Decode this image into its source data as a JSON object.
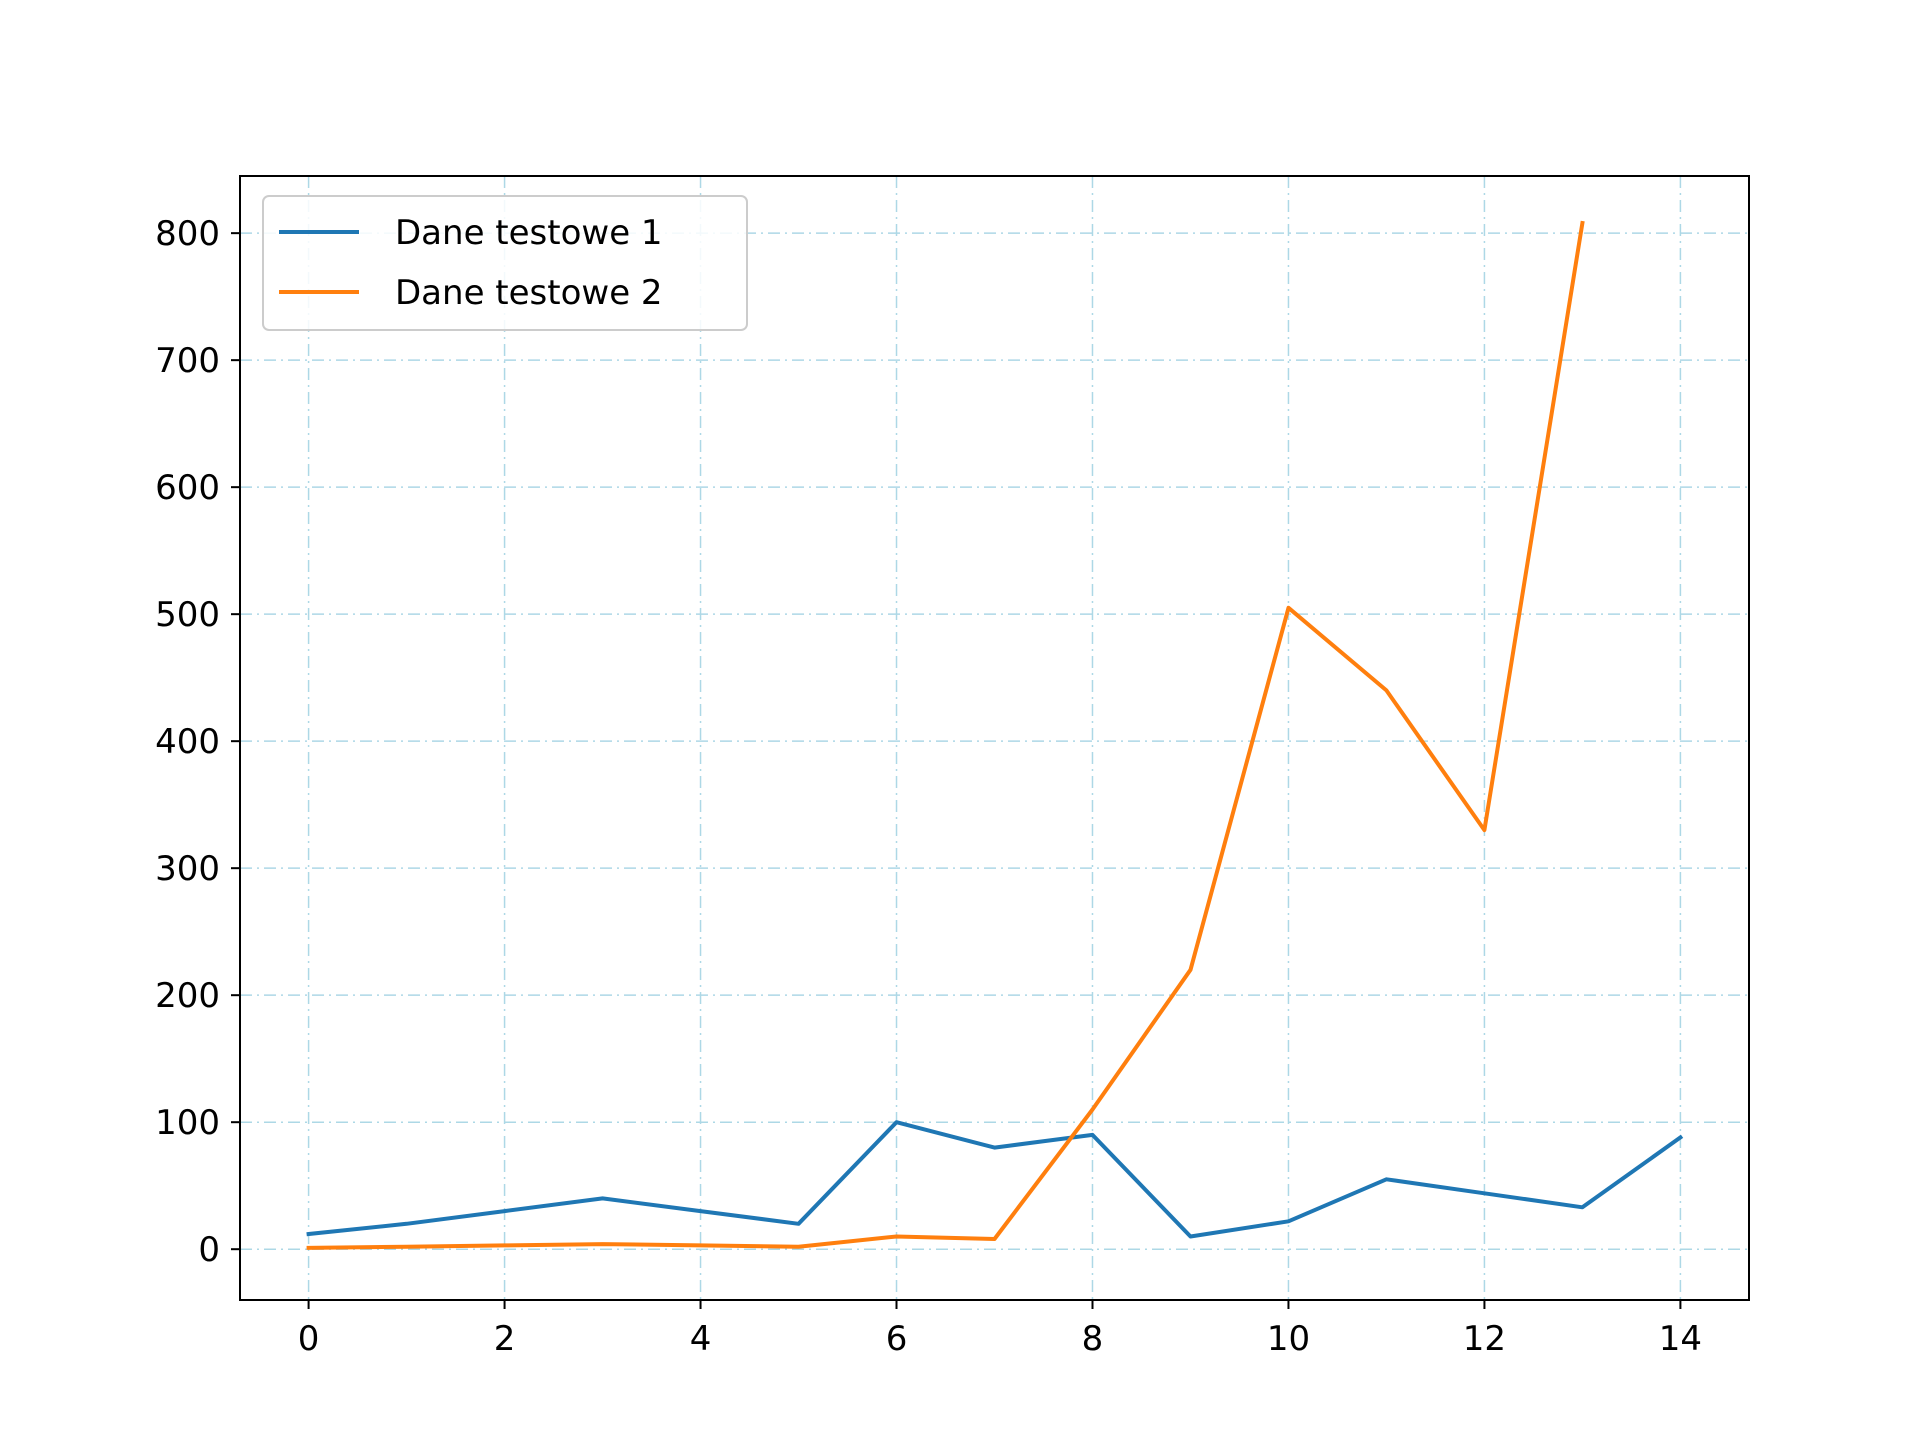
{
  "chart_data": {
    "type": "line",
    "title": "",
    "xlabel": "",
    "ylabel": "",
    "xlim": [
      -0.7,
      14.7
    ],
    "ylim": [
      -40,
      845
    ],
    "x_ticks": [
      0,
      2,
      4,
      6,
      8,
      10,
      12,
      14
    ],
    "y_ticks": [
      0,
      100,
      200,
      300,
      400,
      500,
      600,
      700,
      800
    ],
    "grid": true,
    "grid_color": "#add8e6",
    "grid_style": "dash-dot",
    "legend_position": "upper-left",
    "series": [
      {
        "name": "Dane testowe 1",
        "color": "#1f77b4",
        "x": [
          0,
          1,
          2,
          3,
          4,
          5,
          6,
          7,
          8,
          9,
          10,
          11,
          12,
          13,
          14
        ],
        "y": [
          12,
          20,
          30,
          40,
          30,
          20,
          100,
          80,
          90,
          10,
          22,
          55,
          44,
          33,
          88
        ]
      },
      {
        "name": "Dane testowe 2",
        "color": "#ff7f0e",
        "x": [
          0,
          1,
          2,
          3,
          4,
          5,
          6,
          7,
          8,
          9,
          10,
          11,
          12,
          13
        ],
        "y": [
          1,
          2,
          3,
          4,
          3,
          2,
          10,
          8,
          110,
          220,
          505,
          440,
          330,
          808
        ]
      }
    ]
  }
}
